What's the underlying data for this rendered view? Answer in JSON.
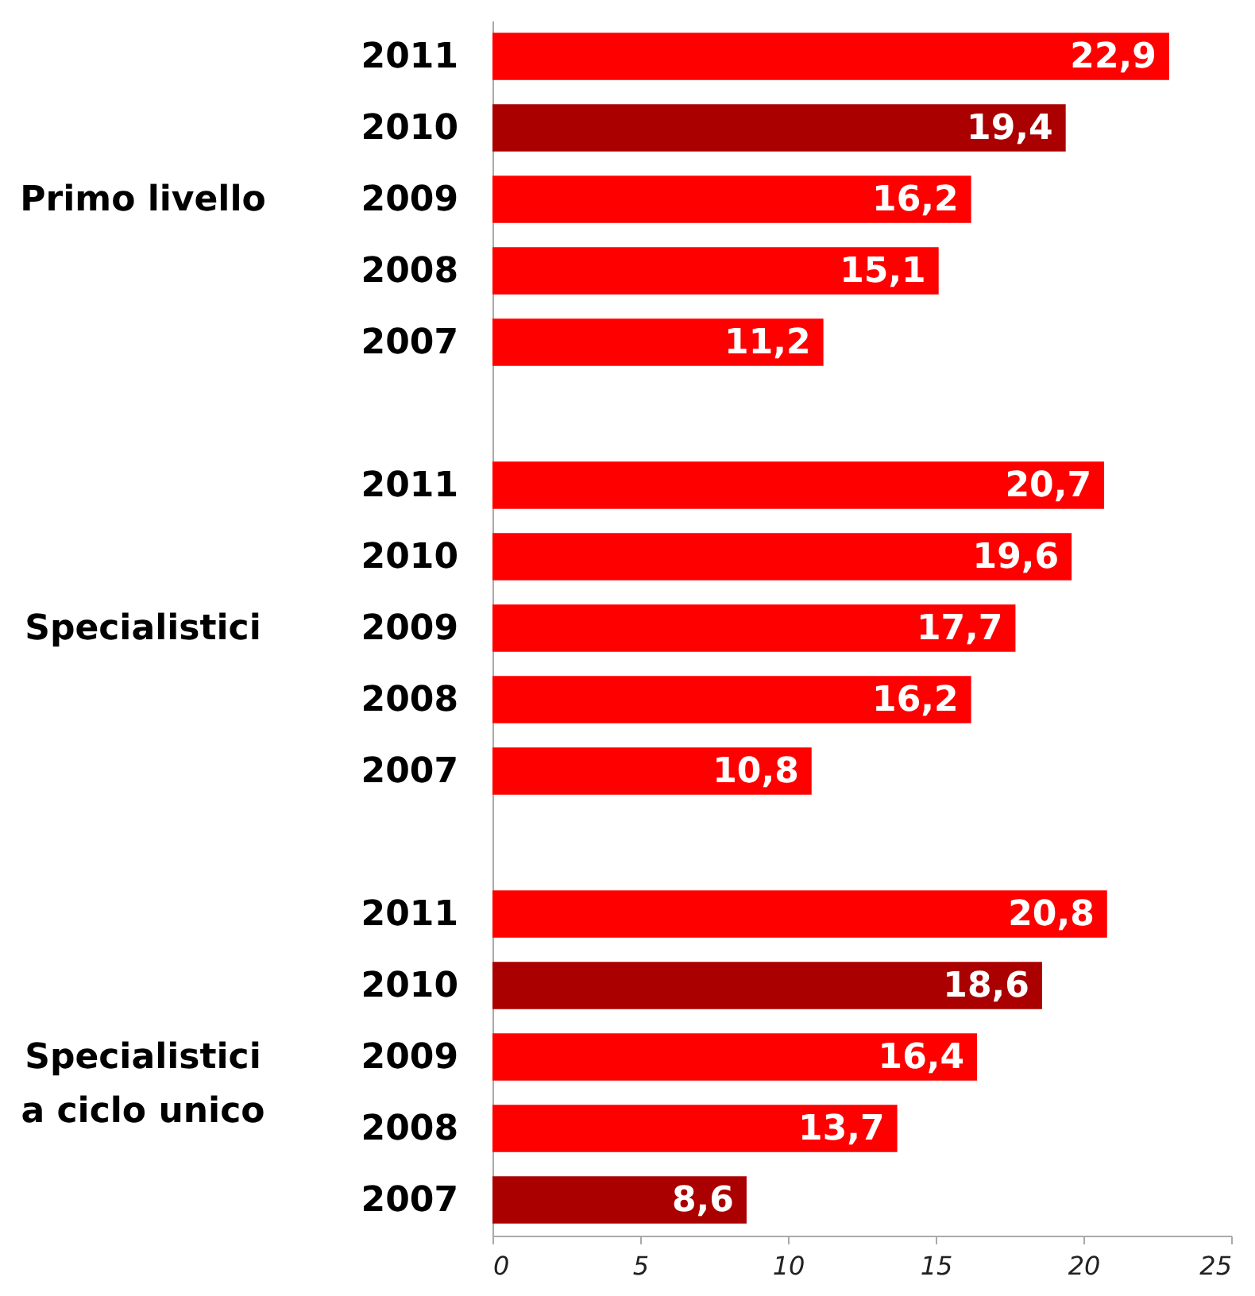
{
  "chart_data": {
    "type": "bar",
    "orientation": "horizontal",
    "categories": [
      "2011",
      "2010",
      "2009",
      "2008",
      "2007",
      null,
      "2011",
      "2010",
      "2009",
      "2008",
      "2007",
      null,
      "2011",
      "2010",
      "2009",
      "2008",
      "2007"
    ],
    "values": [
      22.9,
      19.4,
      16.2,
      15.1,
      11.2,
      null,
      20.7,
      19.6,
      17.7,
      16.2,
      10.8,
      null,
      20.8,
      18.6,
      16.4,
      13.7,
      8.6
    ],
    "colors": [
      "#ff0000",
      "#aa0000",
      "#ff0000",
      "#ff0000",
      "#ff0000",
      null,
      "#ff0000",
      "#ff0000",
      "#ff0000",
      "#ff0000",
      "#ff0000",
      null,
      "#ff0000",
      "#aa0000",
      "#ff0000",
      "#ff0000",
      "#aa0000"
    ],
    "annotations": [
      "Primo livello",
      "Specialistici",
      "Specialistici a ciclo unico"
    ],
    "xlim": [
      0,
      25
    ],
    "xticks": [
      0,
      5,
      10,
      15,
      20,
      25
    ],
    "value_labels": [
      "22,9",
      "19,4",
      "16,2",
      "15,1",
      "11,2",
      null,
      "20,7",
      "19,6",
      "17,7",
      "16,2",
      "10,8",
      null,
      "20,8",
      "18,6",
      "16,4",
      "13,7",
      "8,6"
    ],
    "grid": false
  }
}
